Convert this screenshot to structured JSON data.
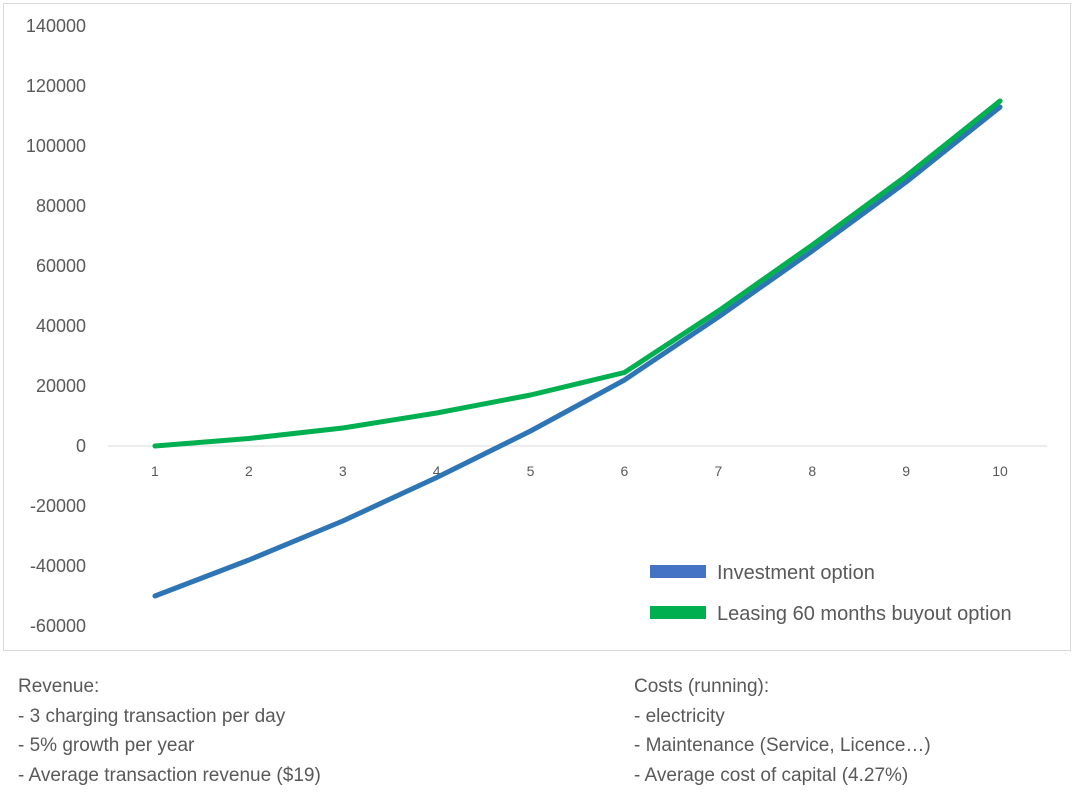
{
  "chart_data": {
    "type": "line",
    "x": [
      1,
      2,
      3,
      4,
      5,
      6,
      7,
      8,
      9,
      10
    ],
    "x_tick_labels": [
      "1",
      "2",
      "3",
      "4",
      "5",
      "6",
      "7",
      "8",
      "9",
      "10"
    ],
    "y_tick_labels": [
      "140000",
      "120000",
      "100000",
      "80000",
      "60000",
      "40000",
      "20000",
      "0",
      "-20000",
      "-40000",
      "-60000"
    ],
    "y_ticks": [
      140000,
      120000,
      100000,
      80000,
      60000,
      40000,
      20000,
      0,
      -20000,
      -40000,
      -60000
    ],
    "ylim": [
      -60000,
      140000
    ],
    "grid": false,
    "legend_position": "bottom-right",
    "series": [
      {
        "name": "Investment option",
        "color": "#2E75B6",
        "values": [
          -50000,
          -38000,
          -25000,
          -10500,
          5000,
          22000,
          43000,
          65000,
          88000,
          113000
        ]
      },
      {
        "name": "Leasing 60 months buyout option",
        "color": "#00B050",
        "values": [
          0,
          2500,
          6000,
          11000,
          17000,
          24500,
          45000,
          67000,
          90000,
          115000
        ]
      }
    ]
  },
  "notes": {
    "revenue": {
      "heading": "Revenue:",
      "lines": [
        "- 3 charging transaction per day",
        "- 5% growth per year",
        "- Average transaction revenue ($19)"
      ]
    },
    "costs": {
      "heading": "Costs (running):",
      "lines": [
        "- electricity",
        "- Maintenance (Service, Licence…)",
        "- Average cost of capital (4.27%)"
      ]
    }
  }
}
